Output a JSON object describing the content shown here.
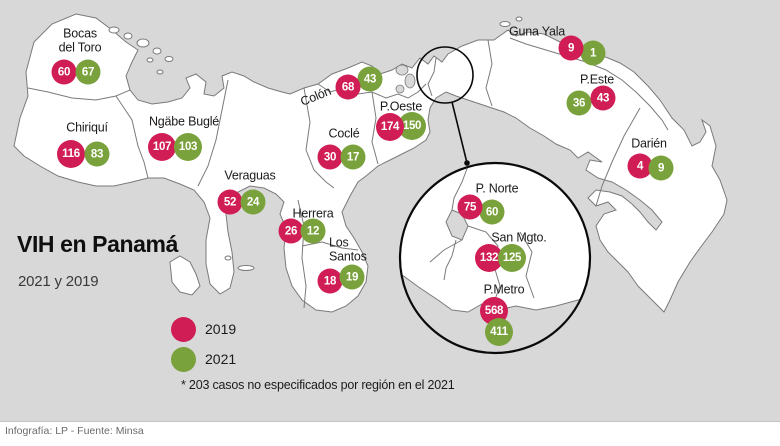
{
  "title": "VIH en Panamá",
  "subtitle": "2021 y 2019",
  "note": "* 203 casos no especificados por región en el 2021",
  "footer": "Infografía: LP - Fuente: Minsa",
  "colors": {
    "c2019": "#d11d56",
    "c2021": "#7aa23c",
    "sea": "#d8d8d8",
    "land": "#ffffff",
    "outline": "#7a7a7a",
    "magnifier": "#0a0a0a"
  },
  "legend": [
    {
      "label": "2019",
      "color_key": "c2019"
    },
    {
      "label": "2021",
      "color_key": "c2021"
    }
  ],
  "regions": [
    {
      "id": "bocas",
      "name": "Bocas del Toro",
      "label": "Bocas\ndel Toro",
      "v2019": 60,
      "v2021": 67
    },
    {
      "id": "chiriqui",
      "name": "Chiriquí",
      "label": "Chiriquí",
      "v2019": 116,
      "v2021": 83
    },
    {
      "id": "ngabe",
      "name": "Ngäbe Buglé",
      "label": "Ngäbe Buglé",
      "v2019": 107,
      "v2021": 103
    },
    {
      "id": "veraguas",
      "name": "Veraguas",
      "label": "Veraguas",
      "v2019": 52,
      "v2021": 24
    },
    {
      "id": "cocle",
      "name": "Coclé",
      "label": "Coclé",
      "v2019": 30,
      "v2021": 17
    },
    {
      "id": "colon",
      "name": "Colón",
      "label": "Colón",
      "v2019": 68,
      "v2021": 43
    },
    {
      "id": "poeste",
      "name": "P.Oeste",
      "label": "P.Oeste",
      "v2019": 174,
      "v2021": 150
    },
    {
      "id": "herrera",
      "name": "Herrera",
      "label": "Herrera",
      "v2019": 26,
      "v2021": 12
    },
    {
      "id": "lossantos",
      "name": "Los Santos",
      "label": "Los\nSantos",
      "v2019": 18,
      "v2021": 19
    },
    {
      "id": "gunayala",
      "name": "Guna Yala",
      "label": "Guna Yala",
      "v2019": 9,
      "v2021": 1
    },
    {
      "id": "peste",
      "name": "P.Este",
      "label": "P.Este",
      "v2019": 43,
      "v2021": 36
    },
    {
      "id": "darien",
      "name": "Darién",
      "label": "Darién",
      "v2019": 4,
      "v2021": 9
    },
    {
      "id": "pnorte",
      "name": "P. Norte",
      "label": "P. Norte",
      "v2019": 75,
      "v2021": 60
    },
    {
      "id": "sanmgto",
      "name": "San Mgto.",
      "label": "San Mgto.",
      "v2019": 132,
      "v2021": 125
    },
    {
      "id": "pmetro",
      "name": "P.Metro",
      "label": "P.Metro",
      "v2019": 568,
      "v2021": 411
    }
  ]
}
